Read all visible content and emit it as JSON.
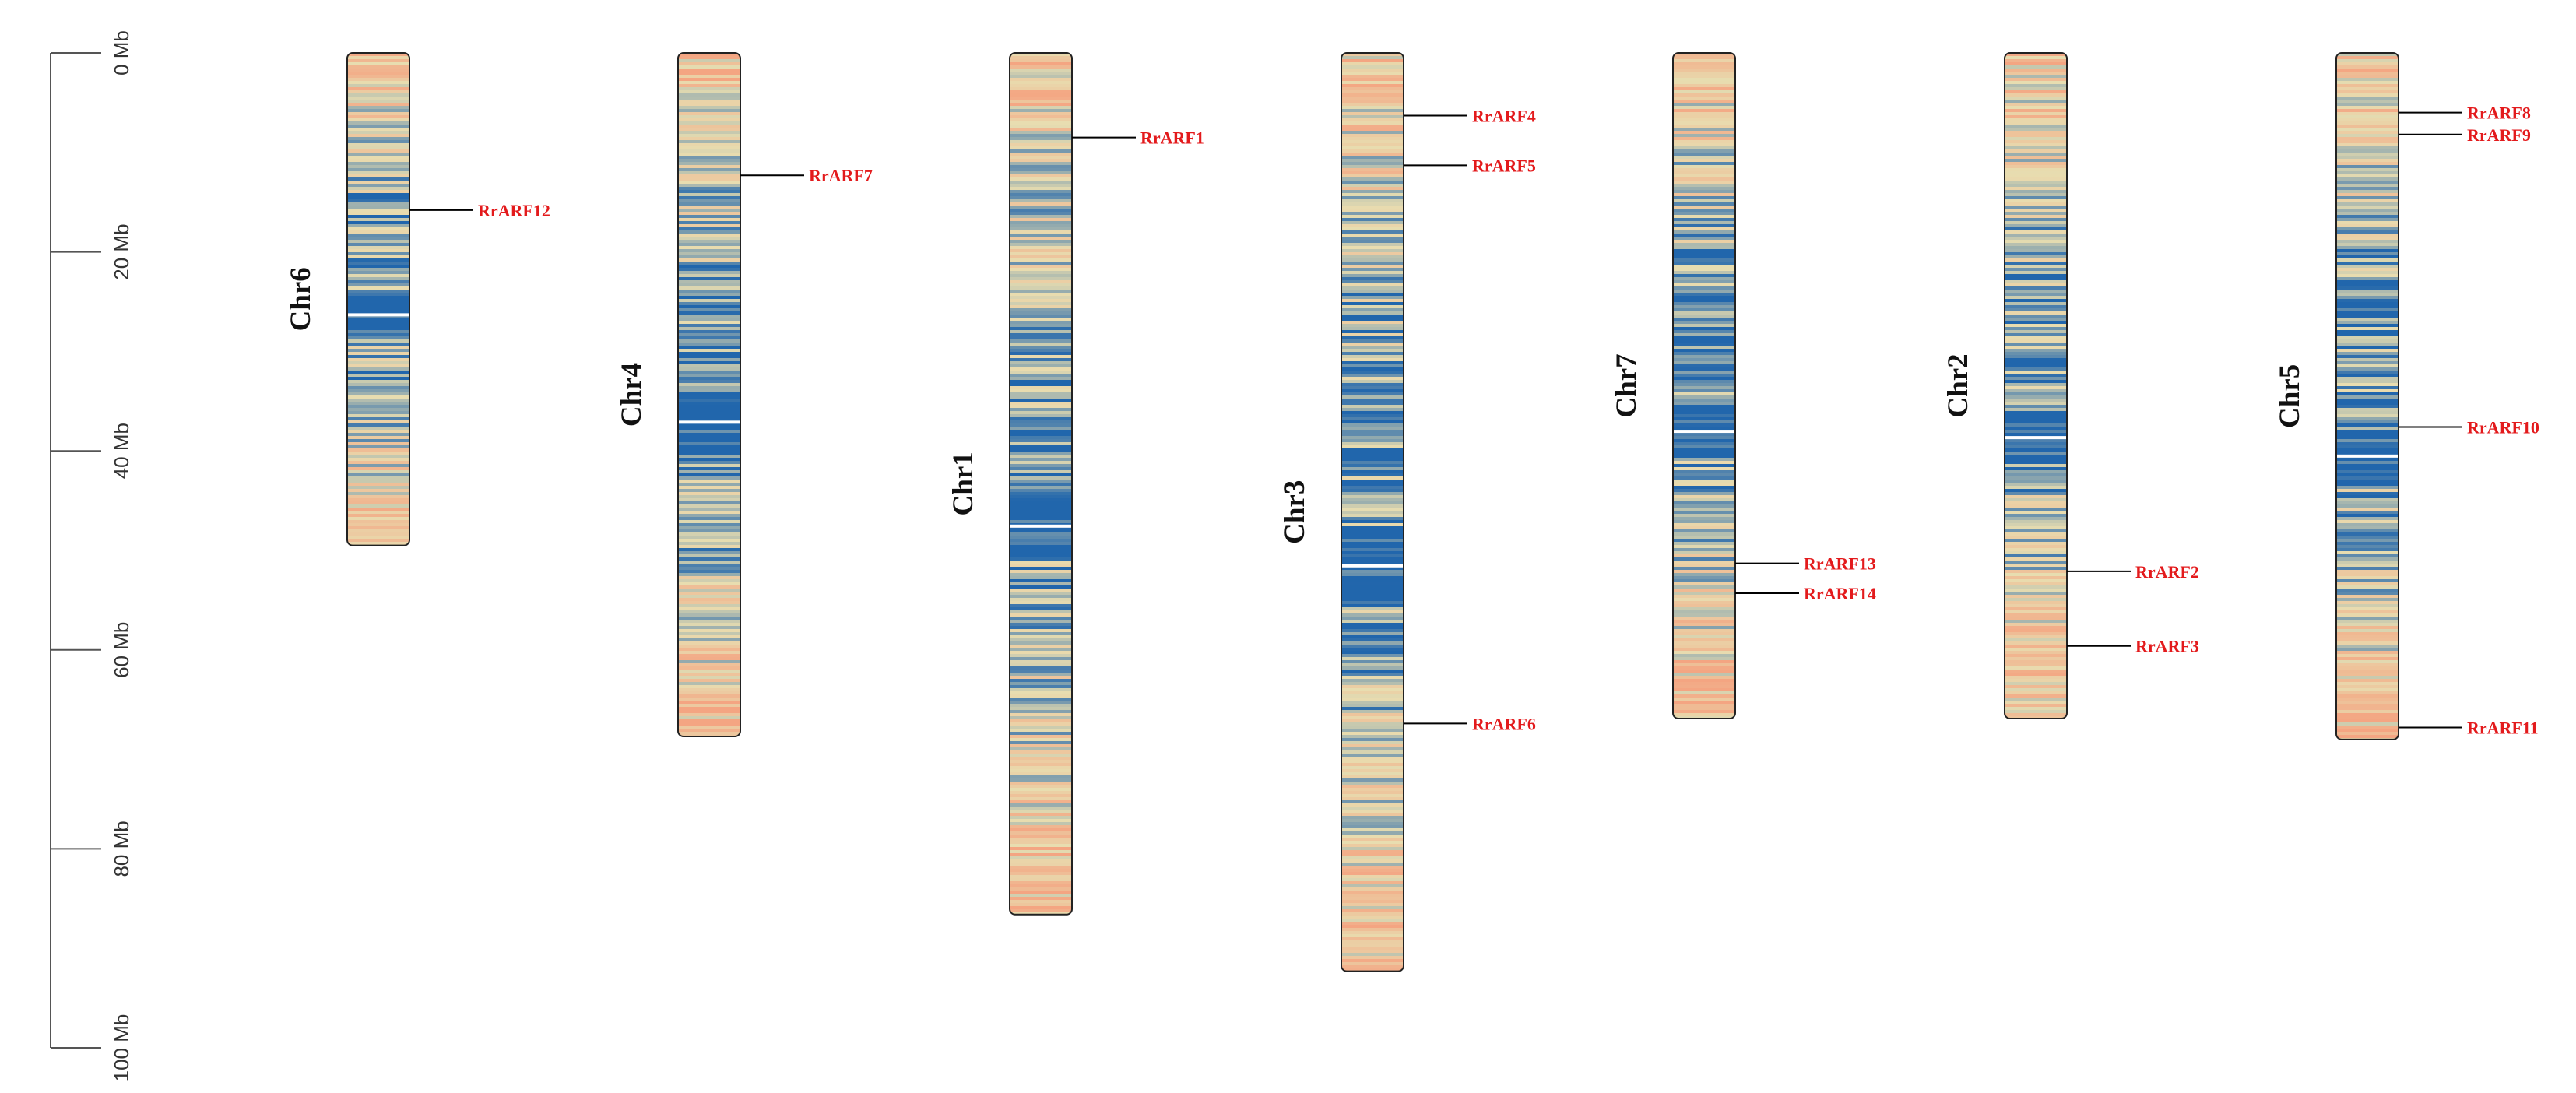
{
  "colors": {
    "gene_label": "#e31a1c",
    "leader_line": "#000000",
    "outline": "#222222",
    "density_low": "#f4a582",
    "density_mid": "#e8ddb0",
    "density_high": "#2166ac"
  },
  "scale_bar": {
    "unit": "Mb",
    "ticks": [
      {
        "value": 0,
        "label": "0 Mb"
      },
      {
        "value": 20,
        "label": "20 Mb"
      },
      {
        "value": 40,
        "label": "40 Mb"
      },
      {
        "value": 60,
        "label": "60 Mb"
      },
      {
        "value": 80,
        "label": "80 Mb"
      },
      {
        "value": 100,
        "label": "100 Mb"
      }
    ]
  },
  "chromosomes": [
    {
      "name": "Chr6",
      "length_mb": 49.5,
      "genes": [
        {
          "name": "RrARF12",
          "pos_mb": 15.8
        }
      ]
    },
    {
      "name": "Chr4",
      "length_mb": 68.7,
      "genes": [
        {
          "name": "RrARF7",
          "pos_mb": 12.3
        }
      ]
    },
    {
      "name": "Chr1",
      "length_mb": 86.6,
      "genes": [
        {
          "name": "RrARF1",
          "pos_mb": 8.5
        }
      ]
    },
    {
      "name": "Chr3",
      "length_mb": 92.3,
      "genes": [
        {
          "name": "RrARF4",
          "pos_mb": 6.3
        },
        {
          "name": "RrARF5",
          "pos_mb": 11.3
        },
        {
          "name": "RrARF6",
          "pos_mb": 67.4
        }
      ]
    },
    {
      "name": "Chr7",
      "length_mb": 66.9,
      "genes": [
        {
          "name": "RrARF13",
          "pos_mb": 51.3
        },
        {
          "name": "RrARF14",
          "pos_mb": 54.3
        }
      ]
    },
    {
      "name": "Chr2",
      "length_mb": 66.9,
      "genes": [
        {
          "name": "RrARF2",
          "pos_mb": 52.1
        },
        {
          "name": "RrARF3",
          "pos_mb": 59.6
        }
      ]
    },
    {
      "name": "Chr5",
      "length_mb": 69.0,
      "genes": [
        {
          "name": "RrARF8",
          "pos_mb": 6.0
        },
        {
          "name": "RrARF9",
          "pos_mb": 8.2
        },
        {
          "name": "RrARF10",
          "pos_mb": 37.6
        },
        {
          "name": "RrARF11",
          "pos_mb": 67.8
        }
      ]
    }
  ]
}
